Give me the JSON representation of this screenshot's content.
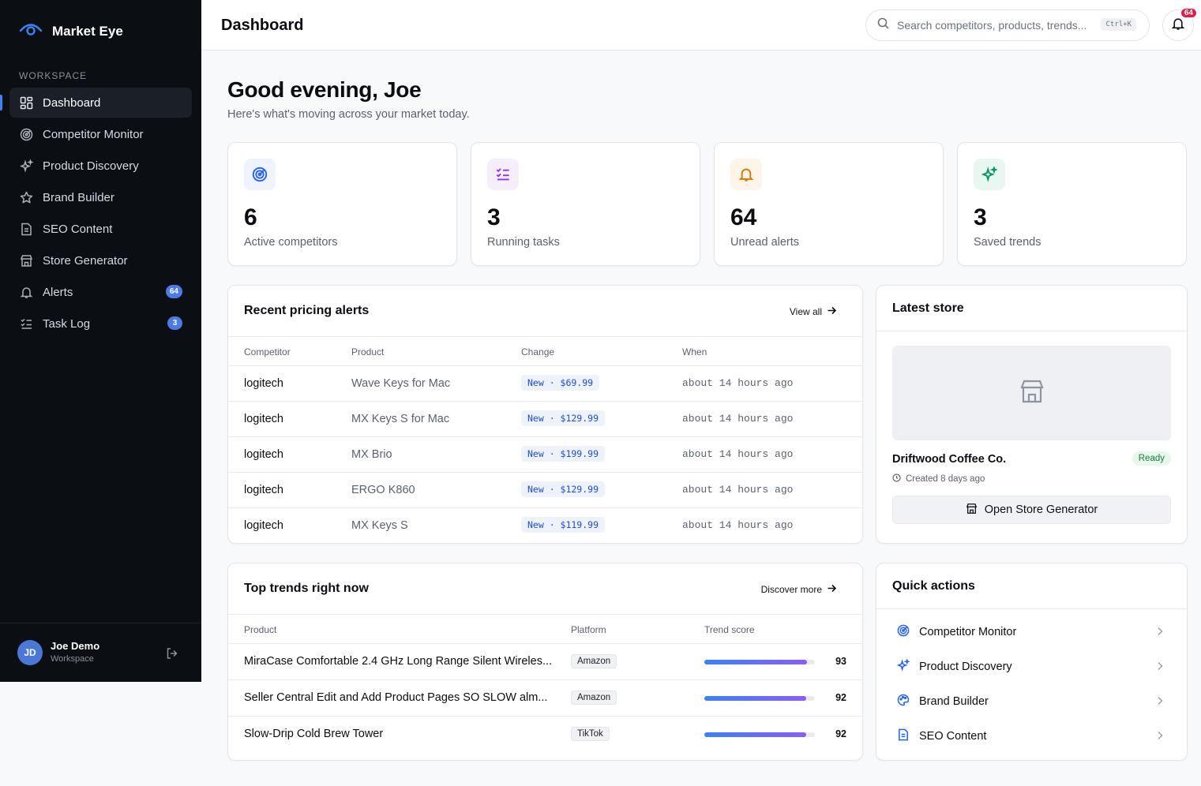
{
  "app": {
    "name": "Market Eye"
  },
  "sidebar": {
    "section_label": "WORKSPACE",
    "items": [
      {
        "label": "Dashboard",
        "icon": "dashboard-icon",
        "active": true
      },
      {
        "label": "Competitor Monitor",
        "icon": "radar-icon"
      },
      {
        "label": "Product Discovery",
        "icon": "sparkles-icon"
      },
      {
        "label": "Brand Builder",
        "icon": "star-icon"
      },
      {
        "label": "SEO Content",
        "icon": "document-icon"
      },
      {
        "label": "Store Generator",
        "icon": "store-icon"
      },
      {
        "label": "Alerts",
        "icon": "bell-icon",
        "badge": "64"
      },
      {
        "label": "Task Log",
        "icon": "checklist-icon",
        "badge": "3"
      }
    ],
    "user": {
      "initials": "JD",
      "name": "Joe Demo",
      "role": "Workspace"
    }
  },
  "header": {
    "title": "Dashboard",
    "search_placeholder": "Search competitors, products, trends...",
    "search_shortcut": "Ctrl+K",
    "notification_count": "64"
  },
  "greeting": {
    "title": "Good evening, Joe",
    "subtitle": "Here's what's moving across your market today."
  },
  "stats": [
    {
      "value": "6",
      "label": "Active competitors",
      "icon": "radar-icon",
      "color": "#2563eb",
      "bg": "#eef3fe"
    },
    {
      "value": "3",
      "label": "Running tasks",
      "icon": "checklist-icon",
      "color": "#9333ea",
      "bg": "#f5eefd"
    },
    {
      "value": "64",
      "label": "Unread alerts",
      "icon": "bell-icon",
      "color": "#d97706",
      "bg": "#fdf5e7"
    },
    {
      "value": "3",
      "label": "Saved trends",
      "icon": "sparkles-icon",
      "color": "#059669",
      "bg": "#e8f7f0"
    }
  ],
  "pricing_alerts": {
    "title": "Recent pricing alerts",
    "link": "View all",
    "columns": [
      "Competitor",
      "Product",
      "Change",
      "When"
    ],
    "rows": [
      {
        "competitor": "logitech",
        "product": "Wave Keys for Mac",
        "change": "New · $69.99",
        "when": "about 14 hours ago"
      },
      {
        "competitor": "logitech",
        "product": "MX Keys S for Mac",
        "change": "New · $129.99",
        "when": "about 14 hours ago"
      },
      {
        "competitor": "logitech",
        "product": "MX Brio",
        "change": "New · $199.99",
        "when": "about 14 hours ago"
      },
      {
        "competitor": "logitech",
        "product": "ERGO K860",
        "change": "New · $129.99",
        "when": "about 14 hours ago"
      },
      {
        "competitor": "logitech",
        "product": "MX Keys S",
        "change": "New · $119.99",
        "when": "about 14 hours ago"
      }
    ]
  },
  "latest_store": {
    "title": "Latest store",
    "name": "Driftwood Coffee Co.",
    "status": "Ready",
    "created": "Created 8 days ago",
    "button": "Open Store Generator"
  },
  "trends": {
    "title": "Top trends right now",
    "link": "Discover more",
    "columns": [
      "Product",
      "Platform",
      "Trend score"
    ],
    "rows": [
      {
        "product": "MiraCase Comfortable 2.4 GHz Long Range Silent Wireles...",
        "platform": "Amazon",
        "score": "93",
        "score_fraction": 0.93
      },
      {
        "product": "Seller Central Edit and Add Product Pages SO SLOW alm...",
        "platform": "Amazon",
        "score": "92",
        "score_fraction": 0.92
      },
      {
        "product": "Slow-Drip Cold Brew Tower",
        "platform": "TikTok",
        "score": "92",
        "score_fraction": 0.92
      }
    ]
  },
  "quick_actions": {
    "title": "Quick actions",
    "items": [
      {
        "label": "Competitor Monitor",
        "icon": "radar-icon"
      },
      {
        "label": "Product Discovery",
        "icon": "sparkles-icon"
      },
      {
        "label": "Brand Builder",
        "icon": "palette-icon"
      },
      {
        "label": "SEO Content",
        "icon": "document-icon"
      }
    ]
  }
}
